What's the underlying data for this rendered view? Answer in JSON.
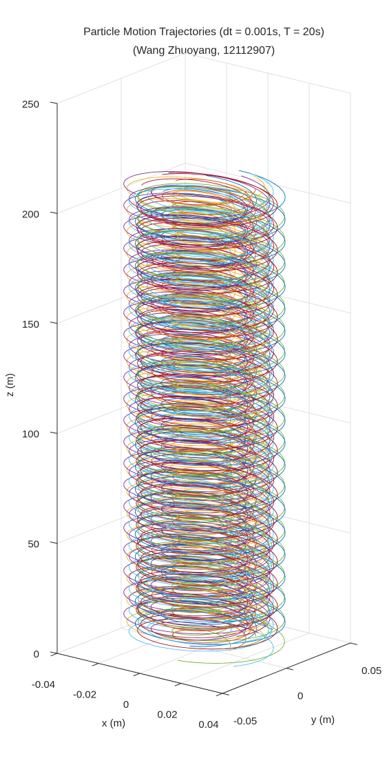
{
  "chart_data": {
    "type": "line",
    "subtype": "3d-helical-trajectories",
    "title": "Particle Motion Trajectories (dt = 0.001s, T = 20s)",
    "subtitle": "(Wang Zhuoyang, 12112907)",
    "xlabel": "x (m)",
    "ylabel": "y (m)",
    "zlabel": "z (m)",
    "xlim": [
      -0.04,
      0.04
    ],
    "ylim": [
      -0.05,
      0.05
    ],
    "zlim": [
      0,
      250
    ],
    "x_ticks": [
      "-0.04",
      "-0.02",
      "0",
      "0.02",
      "0.04"
    ],
    "y_ticks": [
      "-0.05",
      "0",
      "0.05"
    ],
    "z_ticks": [
      "0",
      "50",
      "100",
      "150",
      "200",
      "250"
    ],
    "grid": true,
    "series_colors": [
      "#0072BD",
      "#D95319",
      "#EDB120",
      "#7E2F8E",
      "#77AC30",
      "#4DBEEE",
      "#A2142F"
    ],
    "trajectory_model": {
      "count": 21,
      "approx_turns": 20,
      "z_start_range": [
        0,
        15
      ],
      "z_end_range": [
        205,
        212
      ],
      "helix_radius_range_m": [
        0.012,
        0.032
      ],
      "center_offset_range_m": [
        0.0,
        0.008
      ]
    }
  }
}
